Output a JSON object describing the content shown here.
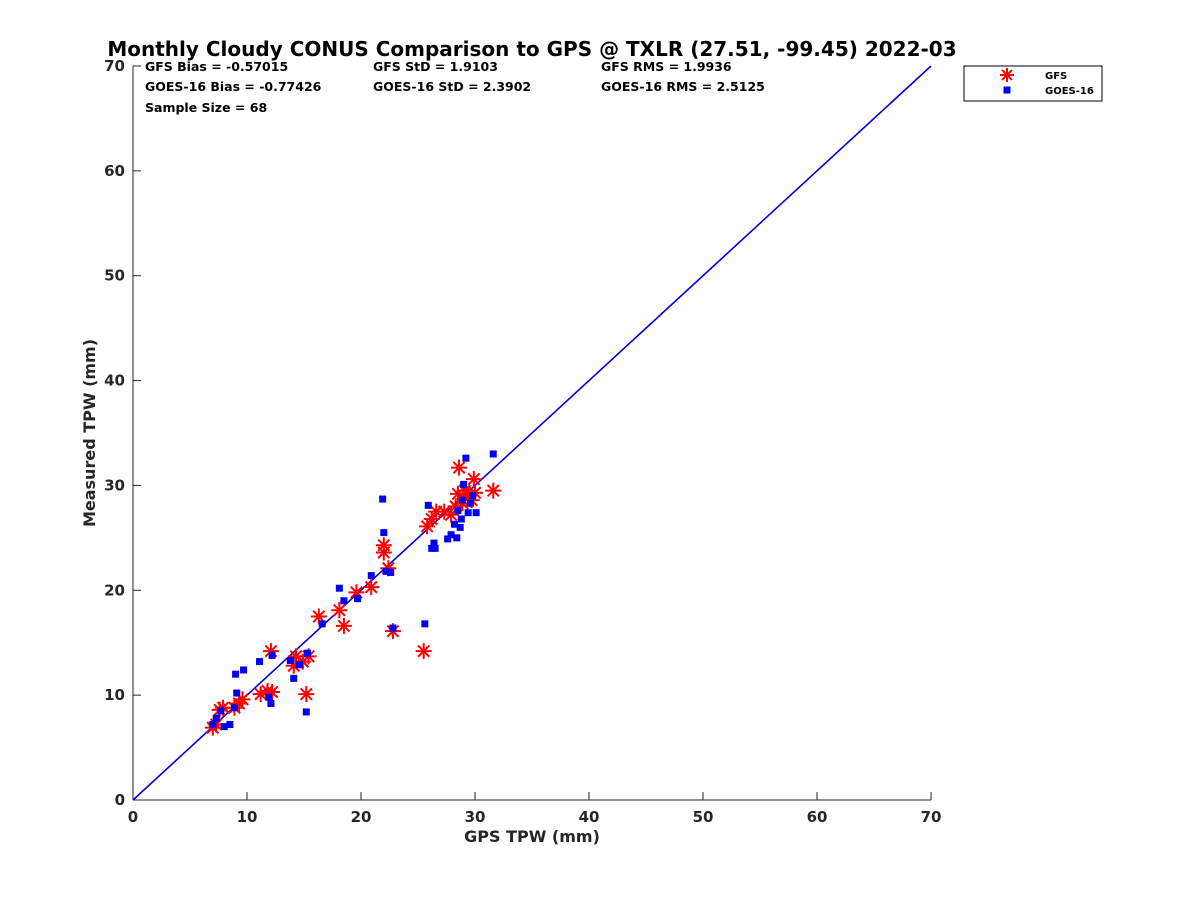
{
  "chart_data": {
    "type": "scatter",
    "title": "Monthly Cloudy CONUS Comparison to GPS @ TXLR (27.51, -99.45) 2022-03",
    "xlabel": "GPS TPW (mm)",
    "ylabel": "Measured TPW (mm)",
    "xlim": [
      0,
      70
    ],
    "ylim": [
      0,
      70
    ],
    "xticks": [
      "0",
      "10",
      "20",
      "30",
      "40",
      "50",
      "60",
      "70"
    ],
    "yticks": [
      "0",
      "10",
      "20",
      "30",
      "40",
      "50",
      "60",
      "70"
    ],
    "grid": false,
    "legend_position": "top-right, outside plot",
    "reference_line": {
      "x": [
        0,
        70
      ],
      "y": [
        0,
        70
      ],
      "color": "#0000dd"
    },
    "stats": {
      "gfs_bias": "GFS Bias = -0.57015",
      "goes_bias": "GOES-16 Bias = -0.77426",
      "sample_size": "Sample Size = 68",
      "gfs_std": "GFS StD = 1.9103",
      "goes_std": "GOES-16 StD = 2.3902",
      "gfs_rms": "GFS RMS = 1.9936",
      "goes_rms": "GOES-16 RMS = 2.5125"
    },
    "series": [
      {
        "name": "GFS",
        "marker": "asterisk",
        "color": "#ff0000",
        "points": [
          [
            7.0,
            6.9
          ],
          [
            7.3,
            7.2
          ],
          [
            7.6,
            8.6
          ],
          [
            7.9,
            8.8
          ],
          [
            8.9,
            8.8
          ],
          [
            9.3,
            9.2
          ],
          [
            9.6,
            9.6
          ],
          [
            11.2,
            10.1
          ],
          [
            11.8,
            10.4
          ],
          [
            12.2,
            10.3
          ],
          [
            12.1,
            14.2
          ],
          [
            14.1,
            12.8
          ],
          [
            14.3,
            13.7
          ],
          [
            14.9,
            13.2
          ],
          [
            15.4,
            13.7
          ],
          [
            15.2,
            10.1
          ],
          [
            16.3,
            17.5
          ],
          [
            18.1,
            18.1
          ],
          [
            18.5,
            16.6
          ],
          [
            19.6,
            19.8
          ],
          [
            20.9,
            20.3
          ],
          [
            22.0,
            24.3
          ],
          [
            22.0,
            23.6
          ],
          [
            22.4,
            22.1
          ],
          [
            22.8,
            16.1
          ],
          [
            25.5,
            14.2
          ],
          [
            25.8,
            26.1
          ],
          [
            26.2,
            26.8
          ],
          [
            26.6,
            27.5
          ],
          [
            27.3,
            27.5
          ],
          [
            27.9,
            27.2
          ],
          [
            28.3,
            28.0
          ],
          [
            28.6,
            31.7
          ],
          [
            28.5,
            29.2
          ],
          [
            28.9,
            28.3
          ],
          [
            29.1,
            29.5
          ],
          [
            29.4,
            29.0
          ],
          [
            29.7,
            28.6
          ],
          [
            29.9,
            30.6
          ],
          [
            30.0,
            29.3
          ],
          [
            31.6,
            29.5
          ]
        ]
      },
      {
        "name": "GOES-16",
        "marker": "square",
        "color": "#0000ee",
        "points": [
          [
            7.0,
            7.2
          ],
          [
            7.3,
            7.8
          ],
          [
            7.7,
            8.5
          ],
          [
            8.0,
            7.0
          ],
          [
            8.5,
            7.2
          ],
          [
            8.9,
            8.8
          ],
          [
            9.1,
            10.2
          ],
          [
            9.0,
            12.0
          ],
          [
            9.7,
            12.4
          ],
          [
            11.1,
            13.2
          ],
          [
            11.9,
            9.8
          ],
          [
            12.1,
            9.2
          ],
          [
            12.2,
            13.8
          ],
          [
            13.8,
            13.3
          ],
          [
            14.1,
            11.6
          ],
          [
            14.6,
            12.9
          ],
          [
            15.3,
            14.0
          ],
          [
            15.2,
            8.4
          ],
          [
            16.6,
            16.8
          ],
          [
            18.1,
            20.2
          ],
          [
            18.5,
            19.0
          ],
          [
            19.7,
            19.2
          ],
          [
            20.9,
            21.4
          ],
          [
            21.9,
            28.7
          ],
          [
            22.0,
            25.5
          ],
          [
            22.2,
            21.8
          ],
          [
            22.6,
            21.7
          ],
          [
            22.8,
            16.4
          ],
          [
            25.6,
            16.8
          ],
          [
            25.9,
            28.1
          ],
          [
            26.2,
            24.0
          ],
          [
            26.4,
            24.5
          ],
          [
            26.5,
            24.0
          ],
          [
            27.6,
            24.9
          ],
          [
            27.9,
            25.3
          ],
          [
            28.2,
            26.3
          ],
          [
            28.4,
            25.0
          ],
          [
            28.5,
            27.6
          ],
          [
            28.7,
            26.0
          ],
          [
            28.8,
            26.8
          ],
          [
            28.9,
            28.6
          ],
          [
            29.0,
            30.1
          ],
          [
            29.2,
            32.6
          ],
          [
            29.4,
            27.4
          ],
          [
            29.6,
            28.3
          ],
          [
            29.8,
            29.0
          ],
          [
            30.1,
            27.4
          ],
          [
            31.6,
            33.0
          ]
        ]
      }
    ]
  }
}
